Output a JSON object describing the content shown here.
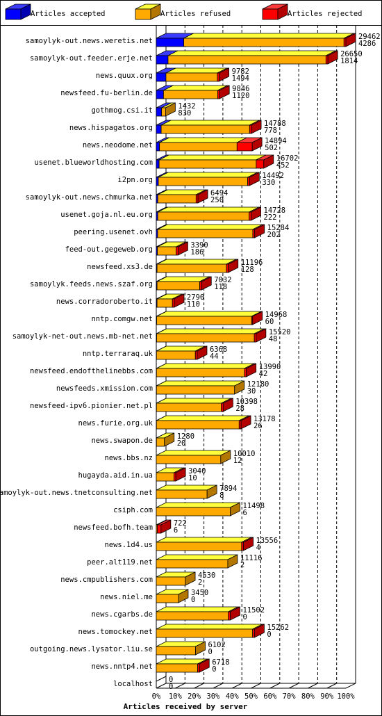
{
  "chart_data": {
    "type": "stacked-bar-3d",
    "x_label": "Articles received by server",
    "categories": [
      "samoylyk-out.news.weretis.net",
      "samoylyk-out.feeder.erje.net",
      "news.quux.org",
      "newsfeed.fu-berlin.de",
      "gothmog.csi.it",
      "news.hispagatos.org",
      "news.neodome.net",
      "usenet.blueworldhosting.com",
      "i2pn.org",
      "samoylyk-out.news.chmurka.net",
      "usenet.goja.nl.eu.org",
      "peering.usenet.ovh",
      "feed-out.gegeweb.org",
      "newsfeed.xs3.de",
      "samoylyk.feeds.news.szaf.org",
      "news.corradoroberto.it",
      "nntp.comgw.net",
      "samoylyk-net-out.news.mb-net.net",
      "nntp.terraraq.uk",
      "newsfeed.endofthelinebbs.com",
      "newsfeeds.xmission.com",
      "newsfeed-ipv6.pionier.net.pl",
      "news.furie.org.uk",
      "news.swapon.de",
      "news.bbs.nz",
      "hugayda.aid.in.ua",
      "samoylyk-out.news.tnetconsulting.net",
      "csiph.com",
      "newsfeed.bofh.team",
      "news.1d4.us",
      "peer.alt119.net",
      "news.cmpublishers.com",
      "news.niel.me",
      "news.cgarbs.de",
      "news.tomockey.net",
      "outgoing.news.lysator.liu.se",
      "news.nntp4.net",
      "localhost"
    ],
    "series": [
      {
        "name": "Articles accepted",
        "color": "#0000ff",
        "values": [
          14.5,
          6.2,
          5.1,
          3.8,
          2.8,
          2.6,
          1.7,
          1.5,
          1.1,
          0.8,
          0.8,
          0.7,
          0.6,
          0.4,
          0.4,
          0.4,
          0.2,
          0.2,
          0.1,
          0.1,
          0.1,
          0.1,
          0.1,
          0.1,
          0,
          0,
          0,
          0,
          0,
          0,
          0,
          0,
          0,
          0,
          0,
          0,
          0,
          0
        ]
      },
      {
        "name": "Articles refused",
        "color": "#ffaa00",
        "values": [
          84.5,
          83.3,
          27.1,
          28.6,
          2.1,
          46.6,
          40.9,
          51.2,
          47.1,
          20.2,
          48.2,
          50.2,
          9.9,
          36.6,
          22.5,
          8.1,
          50.1,
          51.5,
          20.5,
          46.4,
          41.2,
          34.2,
          43.6,
          4.2,
          34.0,
          9.3,
          26.8,
          39.0,
          0.5,
          45.0,
          37.7,
          15.4,
          11.7,
          38.0,
          50.8,
          20.7,
          21.8,
          0
        ]
      },
      {
        "name": "Articles rejected",
        "color": "#ff0000",
        "values": [
          1,
          1,
          1,
          1,
          0,
          1,
          8,
          4,
          1,
          1,
          1,
          1,
          1,
          1,
          1,
          1,
          0.5,
          1,
          1,
          1,
          0,
          1,
          1,
          0,
          0,
          1,
          0,
          0,
          2,
          1,
          0,
          0,
          0,
          1,
          1,
          0,
          1,
          0
        ]
      }
    ],
    "offered": [
      29462,
      26650,
      9782,
      9846,
      1432,
      14788,
      14894,
      16702,
      14492,
      6494,
      14728,
      15284,
      3390,
      11196,
      7032,
      2790,
      14968,
      15520,
      6368,
      13990,
      12180,
      10398,
      13178,
      1280,
      10010,
      3040,
      7894,
      11498,
      722,
      13556,
      11116,
      4530,
      3450,
      11502,
      15262,
      6102,
      6718,
      0
    ],
    "accepted": [
      4286,
      1814,
      1494,
      1120,
      830,
      778,
      502,
      452,
      330,
      250,
      222,
      202,
      186,
      128,
      118,
      110,
      60,
      48,
      44,
      42,
      30,
      28,
      26,
      20,
      12,
      10,
      8,
      6,
      6,
      4,
      2,
      2,
      0,
      0,
      0,
      0,
      0,
      0
    ],
    "xlim": [
      0,
      100
    ],
    "xticks": [
      {
        "value": 0,
        "label": "0%"
      },
      {
        "value": 10,
        "label": "10%"
      },
      {
        "value": 20,
        "label": "20%"
      },
      {
        "value": 30,
        "label": "30%"
      },
      {
        "value": 40,
        "label": "40%"
      },
      {
        "value": 50,
        "label": "50%"
      },
      {
        "value": 60,
        "label": "60%"
      },
      {
        "value": 70,
        "label": "70%"
      },
      {
        "value": 80,
        "label": "80%"
      },
      {
        "value": 90,
        "label": "90%"
      },
      {
        "value": 100,
        "label": "100%"
      }
    ],
    "grid": true
  }
}
